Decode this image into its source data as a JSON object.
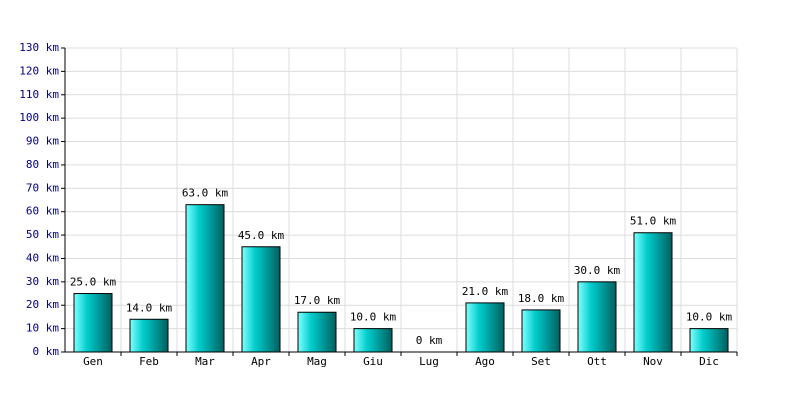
{
  "chart_data": {
    "type": "bar",
    "categories": [
      "Gen",
      "Feb",
      "Mar",
      "Apr",
      "Mag",
      "Giu",
      "Lug",
      "Ago",
      "Set",
      "Ott",
      "Nov",
      "Dic"
    ],
    "values": [
      25,
      14,
      63,
      45,
      17,
      10,
      0,
      21,
      18,
      30,
      51,
      10
    ],
    "value_labels": [
      "25.0 km",
      "14.0 km",
      "63.0 km",
      "45.0 km",
      "17.0 km",
      "10.0 km",
      "0 km",
      "21.0 km",
      "18.0 km",
      "30.0 km",
      "51.0 km",
      "10.0 km"
    ],
    "color": "#00cccc",
    "ylim": [
      0,
      130
    ],
    "yticks": [
      {
        "value": 0,
        "label": "0 km"
      },
      {
        "value": 10,
        "label": "10 km"
      },
      {
        "value": 20,
        "label": "20 km"
      },
      {
        "value": 30,
        "label": "30 km"
      },
      {
        "value": 40,
        "label": "40 km"
      },
      {
        "value": 50,
        "label": "50 km"
      },
      {
        "value": 60,
        "label": "60 km"
      },
      {
        "value": 70,
        "label": "70 km"
      },
      {
        "value": 80,
        "label": "80 km"
      },
      {
        "value": 90,
        "label": "90 km"
      },
      {
        "value": 100,
        "label": "100 km"
      },
      {
        "value": 110,
        "label": "110 km"
      },
      {
        "value": 120,
        "label": "120 km"
      },
      {
        "value": 130,
        "label": "130 km"
      }
    ],
    "grid": true
  }
}
